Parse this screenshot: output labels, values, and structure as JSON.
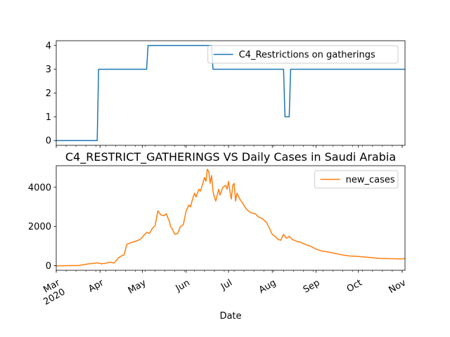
{
  "chart_data": [
    {
      "type": "line",
      "title": "",
      "xlabel": "",
      "ylabel": "",
      "ylim": [
        -0.2,
        4.2
      ],
      "yticks": [
        0,
        1,
        2,
        3,
        4
      ],
      "xlim": [
        "2020-03-01",
        "2020-11-03"
      ],
      "grid": false,
      "legend_position": "top-right",
      "series": [
        {
          "name": "C4_Restrictions on gatherings",
          "color": "#1f77b4",
          "x": [
            "2020-03-01",
            "2020-03-30",
            "2020-03-31",
            "2020-05-04",
            "2020-05-05",
            "2020-06-19",
            "2020-06-20",
            "2020-08-09",
            "2020-08-10",
            "2020-08-13",
            "2020-08-14",
            "2020-11-03"
          ],
          "y": [
            0,
            0,
            3,
            3,
            4,
            4,
            3,
            3,
            1,
            1,
            3,
            3
          ]
        }
      ]
    },
    {
      "type": "line",
      "title": "C4_RESTRICT_GATHERINGS VS Daily Cases in Saudi Arabia",
      "xlabel": "Date",
      "ylabel": "",
      "ylim": [
        -230,
        5100
      ],
      "yticks": [
        0,
        2000,
        4000
      ],
      "xlim": [
        "2020-03-01",
        "2020-11-03"
      ],
      "xtick_labels": [
        "Mar\n2020",
        "Apr",
        "May",
        "Jun",
        "Jul",
        "Aug",
        "Sep",
        "Oct",
        "Nov"
      ],
      "grid": false,
      "legend_position": "top-right",
      "series": [
        {
          "name": "new_cases",
          "color": "#ff7f0e",
          "x": [
            "2020-03-01",
            "2020-03-10",
            "2020-03-17",
            "2020-03-20",
            "2020-03-24",
            "2020-03-27",
            "2020-03-30",
            "2020-04-02",
            "2020-04-05",
            "2020-04-08",
            "2020-04-11",
            "2020-04-14",
            "2020-04-16",
            "2020-04-18",
            "2020-04-20",
            "2020-04-22",
            "2020-04-24",
            "2020-04-26",
            "2020-04-28",
            "2020-04-30",
            "2020-05-02",
            "2020-05-04",
            "2020-05-06",
            "2020-05-08",
            "2020-05-10",
            "2020-05-12",
            "2020-05-14",
            "2020-05-16",
            "2020-05-18",
            "2020-05-19",
            "2020-05-20",
            "2020-05-21",
            "2020-05-22",
            "2020-05-23",
            "2020-05-24",
            "2020-05-26",
            "2020-05-28",
            "2020-05-30",
            "2020-06-01",
            "2020-06-03",
            "2020-06-04",
            "2020-06-06",
            "2020-06-07",
            "2020-06-08",
            "2020-06-10",
            "2020-06-11",
            "2020-06-12",
            "2020-06-14",
            "2020-06-15",
            "2020-06-16",
            "2020-06-17",
            "2020-06-18",
            "2020-06-19",
            "2020-06-20",
            "2020-06-21",
            "2020-06-22",
            "2020-06-24",
            "2020-06-25",
            "2020-06-27",
            "2020-06-29",
            "2020-06-30",
            "2020-07-01",
            "2020-07-02",
            "2020-07-03",
            "2020-07-04",
            "2020-07-05",
            "2020-07-06",
            "2020-07-07",
            "2020-07-09",
            "2020-07-11",
            "2020-07-13",
            "2020-07-15",
            "2020-07-17",
            "2020-07-20",
            "2020-07-22",
            "2020-07-25",
            "2020-07-28",
            "2020-07-30",
            "2020-08-01",
            "2020-08-03",
            "2020-08-05",
            "2020-08-07",
            "2020-08-09",
            "2020-08-11",
            "2020-08-13",
            "2020-08-15",
            "2020-08-18",
            "2020-08-21",
            "2020-08-24",
            "2020-08-28",
            "2020-09-01",
            "2020-09-05",
            "2020-09-10",
            "2020-09-15",
            "2020-09-20",
            "2020-09-25",
            "2020-09-30",
            "2020-10-05",
            "2020-10-10",
            "2020-10-15",
            "2020-10-20",
            "2020-10-25",
            "2020-10-30",
            "2020-11-03"
          ],
          "y": [
            0,
            5,
            15,
            50,
            100,
            120,
            150,
            100,
            130,
            180,
            140,
            400,
            500,
            550,
            1100,
            1150,
            1200,
            1250,
            1300,
            1380,
            1550,
            1700,
            1650,
            1900,
            2050,
            2800,
            2600,
            2550,
            2650,
            2450,
            2300,
            2000,
            1900,
            1750,
            1600,
            1650,
            2000,
            2100,
            2800,
            3100,
            3000,
            3500,
            3700,
            3500,
            3900,
            3800,
            4000,
            4500,
            4300,
            4919,
            4800,
            4200,
            4600,
            3800,
            3500,
            3300,
            3900,
            3600,
            4000,
            4100,
            3900,
            4300,
            3800,
            3400,
            4100,
            4200,
            3300,
            3700,
            3400,
            3200,
            2950,
            2800,
            2700,
            2650,
            2500,
            2400,
            2200,
            1900,
            1600,
            1500,
            1350,
            1300,
            1600,
            1400,
            1500,
            1350,
            1250,
            1200,
            1100,
            1000,
            850,
            750,
            700,
            620,
            550,
            500,
            480,
            450,
            420,
            380,
            370,
            360,
            350,
            360
          ]
        }
      ]
    }
  ]
}
